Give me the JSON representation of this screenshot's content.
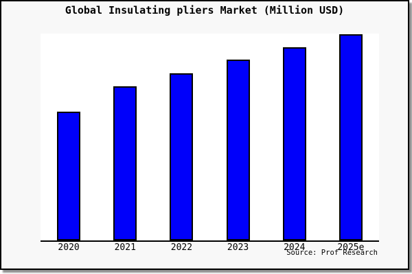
{
  "chart": {
    "title": "Global Insulating pliers Market (Million USD)",
    "source_label": "Source: Prof Research"
  },
  "chart_data": {
    "type": "bar",
    "title": "Global Insulating pliers Market (Million USD)",
    "categories": [
      "2020",
      "2021",
      "2022",
      "2023",
      "2024",
      "2025e"
    ],
    "values": [
      62.5,
      74.8,
      81.1,
      87.7,
      93.7,
      100
    ],
    "values_note": "no y-axis or data labels shown; values are bar heights normalized to 2025e = 100",
    "xlabel": "",
    "ylabel": "",
    "ylim": [
      0,
      100.3
    ],
    "grid": false,
    "legend": false,
    "source_label": "Source: Prof Research",
    "colors": {
      "bar_fill": "#0000fa",
      "bar_border": "#000000",
      "figure_background": "#f8f8f8",
      "plot_background": "#ffffff",
      "text": "#000000"
    }
  }
}
